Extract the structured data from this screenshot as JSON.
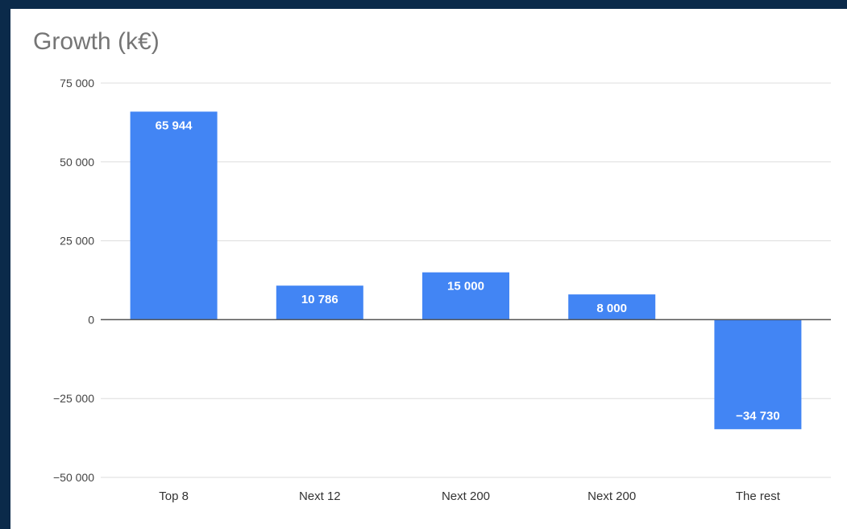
{
  "chart_data": {
    "type": "bar",
    "title": "Growth (k€)",
    "xlabel": "",
    "ylabel": "",
    "categories": [
      "Top 8",
      "Next 12",
      "Next 200",
      "Next 200",
      "The rest"
    ],
    "values": [
      65944,
      10786,
      15000,
      8000,
      -34730
    ],
    "value_labels": [
      "65 944",
      "10 786",
      "15 000",
      "8 000",
      "−34 730"
    ],
    "ylim": [
      -50000,
      75000
    ],
    "yticks": [
      75000,
      50000,
      25000,
      0,
      -25000,
      -50000
    ],
    "ytick_labels": [
      "75 000",
      "50 000",
      "25 000",
      "0",
      "−25 000",
      "−50 000"
    ],
    "grid": true,
    "legend": "none",
    "colors": {
      "bar": "#4285f4",
      "grid": "#dddddd",
      "zero_line": "#555555",
      "frame": "#0b2a4a"
    }
  }
}
